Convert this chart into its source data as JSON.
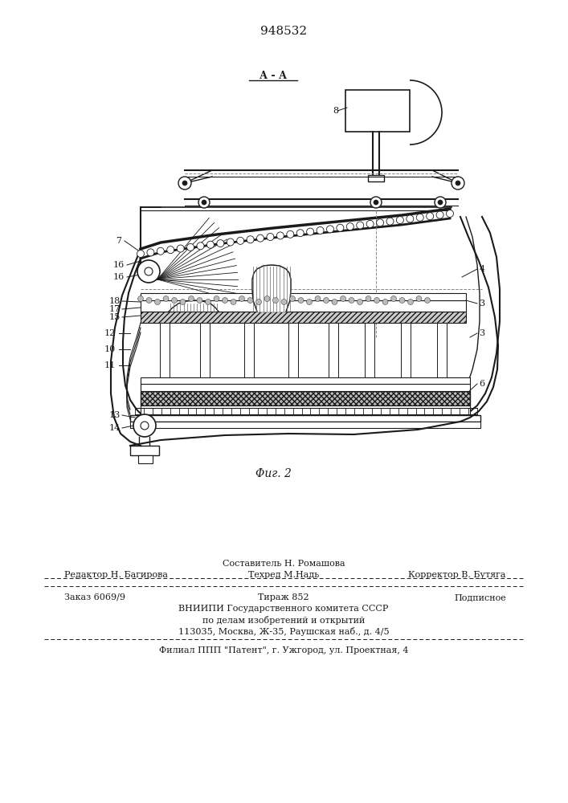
{
  "patent_number": "948532",
  "fig_label": "Φиг. 2",
  "section_label": "А - А",
  "background_color": "#ffffff",
  "line_color": "#1a1a1a",
  "footer": {
    "line1_left": "Редактор Н. Багирова",
    "line1_center_top": "Составитель Н. Ромашова",
    "line1_center_bottom": "Техред М.Надь",
    "line1_right": "Корректор В. Бутяга",
    "line2_left": "Заказ 6069/9",
    "line2_center": "Тираж 852",
    "line2_right": "Подписное",
    "line3": "ВНИИПИ Государственного комитета СССР",
    "line4": "по делам изобретений и открытий",
    "line5": "113035, Москва, Ж-35, Раушская наб., д. 4/5",
    "line6": "Филиал ППП \"Патент\", г. Ужгород, ул. Проектная, 4"
  }
}
